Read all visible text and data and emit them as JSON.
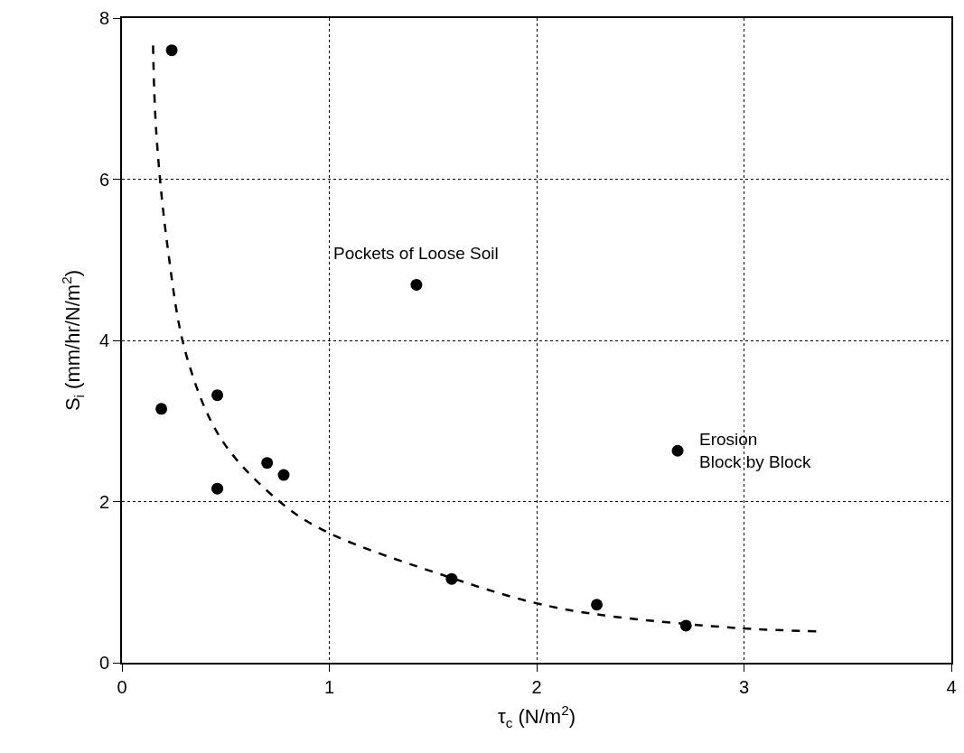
{
  "chart_data": {
    "type": "scatter",
    "xlabel": "τ$_{c}$ (N/m$^{2}$)",
    "ylabel": "S$_{i}$ (mm/hr/N/m$^{2}$)",
    "xlim": [
      0,
      4
    ],
    "ylim": [
      0,
      8
    ],
    "xticks": [
      0,
      1,
      2,
      3,
      4
    ],
    "yticks": [
      0,
      2,
      4,
      6,
      8
    ],
    "grid": true,
    "series": [
      {
        "color": "#000000",
        "marker": "circle",
        "x": [
          0.24,
          0.19,
          0.46,
          0.46,
          0.7,
          0.78,
          1.42,
          1.59,
          2.29,
          2.68,
          2.72
        ],
        "values": [
          7.6,
          3.15,
          3.32,
          2.16,
          2.48,
          2.33,
          4.69,
          1.04,
          0.72,
          2.63,
          0.46
        ]
      },
      {
        "type": "line",
        "color": "#000000",
        "line_style": "dashed",
        "marker": "none",
        "x": [
          0.15,
          0.165,
          0.22,
          0.31,
          0.48,
          0.76,
          0.99,
          1.58,
          1.98,
          2.29,
          2.97,
          3.36
        ],
        "values": [
          7.66,
          6.6,
          5.16,
          3.82,
          2.77,
          2.0,
          1.62,
          1.06,
          0.75,
          0.6,
          0.43,
          0.39
        ]
      }
    ],
    "annotations": [
      {
        "text": "Pockets of Loose Soil",
        "x": 1.42,
        "y": 4.69
      },
      {
        "text": "Erosion\nBlock by Block",
        "x": 2.68,
        "y": 2.63
      }
    ]
  }
}
